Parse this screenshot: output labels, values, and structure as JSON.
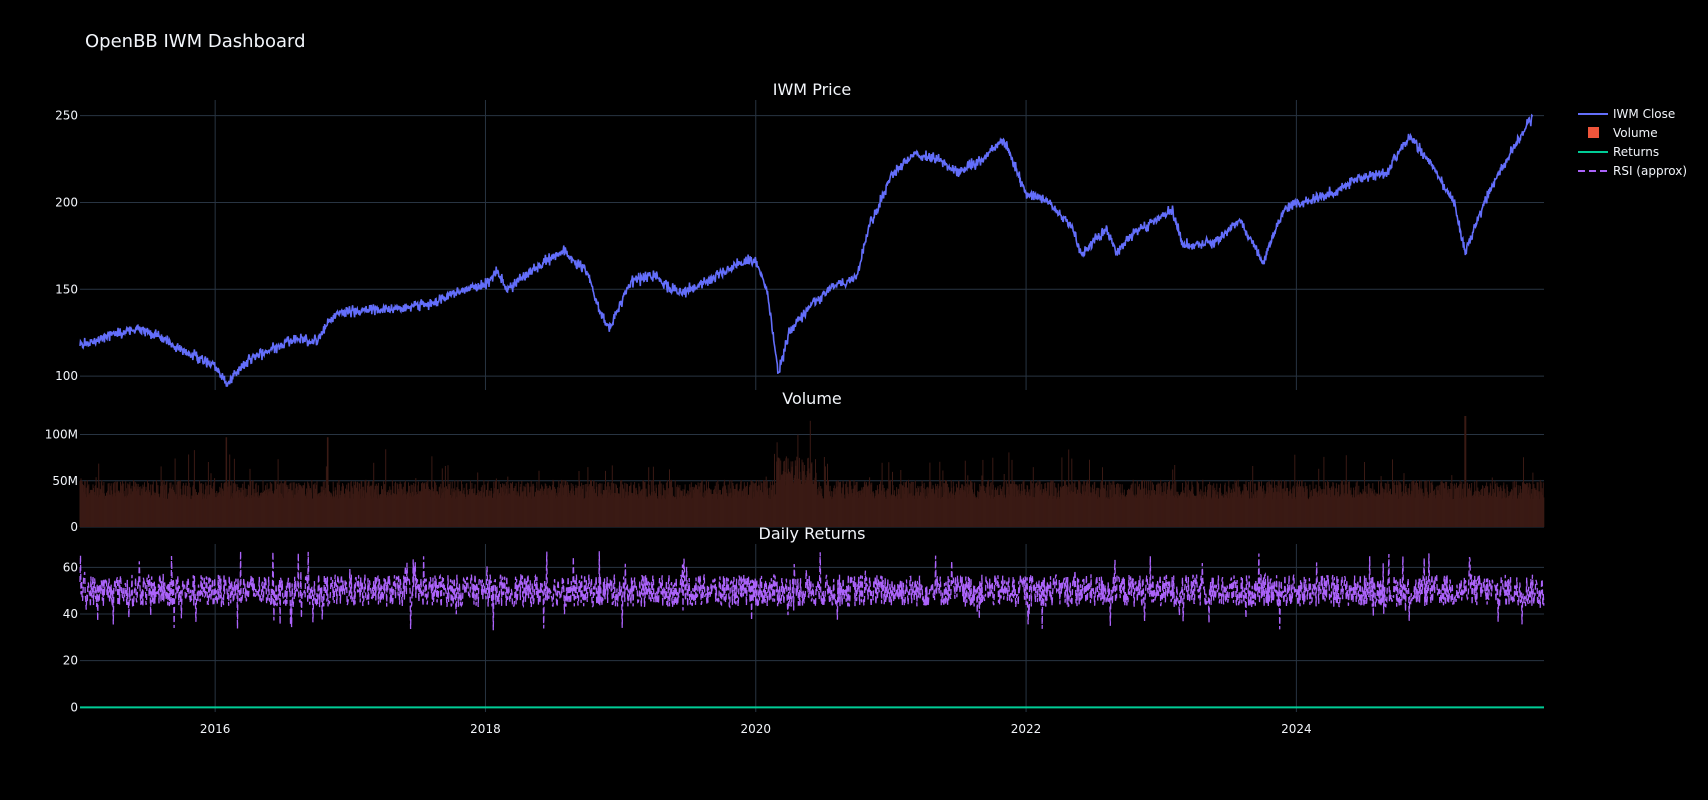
{
  "title": "OpenBB IWM Dashboard",
  "colors": {
    "background": "#000000",
    "grid": "#283442",
    "text": "#f2f5fa",
    "close": "#636efa",
    "volume": "#ef553b",
    "returns": "#00cc96",
    "rsi": "#ab63fa"
  },
  "legend": [
    {
      "label": "IWM Close",
      "symbol": "line",
      "color": "#636efa"
    },
    {
      "label": "Volume",
      "symbol": "square",
      "color": "#ef553b"
    },
    {
      "label": "Returns",
      "symbol": "line",
      "color": "#00cc96"
    },
    {
      "label": "RSI (approx)",
      "symbol": "dash",
      "color": "#ab63fa"
    }
  ],
  "x_ticks": [
    "2016",
    "2018",
    "2020",
    "2022",
    "2024"
  ],
  "chart_data": [
    {
      "type": "line",
      "title": "IWM Price",
      "series": [
        {
          "name": "IWM Close"
        }
      ],
      "xlim": [
        "2015-01-01",
        "2025-10-31"
      ],
      "ylim": [
        92,
        259
      ],
      "yticks": [
        100,
        150,
        200,
        250
      ],
      "x": [
        "2015-01",
        "2015-04",
        "2015-06",
        "2015-08",
        "2015-10",
        "2016-01",
        "2016-02",
        "2016-04",
        "2016-06",
        "2016-08",
        "2016-10",
        "2016-11",
        "2016-12",
        "2017-03",
        "2017-06",
        "2017-08",
        "2017-10",
        "2018-01",
        "2018-02",
        "2018-03",
        "2018-06",
        "2018-08",
        "2018-10",
        "2018-11",
        "2018-12",
        "2019-02",
        "2019-04",
        "2019-06",
        "2019-08",
        "2019-10",
        "2019-12",
        "2020-01",
        "2020-02",
        "2020-03",
        "2020-04",
        "2020-06",
        "2020-08",
        "2020-10",
        "2020-11",
        "2021-01",
        "2021-03",
        "2021-05",
        "2021-07",
        "2021-09",
        "2021-11",
        "2022-01",
        "2022-03",
        "2022-05",
        "2022-06",
        "2022-08",
        "2022-09",
        "2022-11",
        "2023-02",
        "2023-03",
        "2023-06",
        "2023-08",
        "2023-10",
        "2023-12",
        "2024-02",
        "2024-04",
        "2024-07",
        "2024-09",
        "2024-11",
        "2025-01",
        "2025-03",
        "2025-04",
        "2025-06",
        "2025-08",
        "2025-10"
      ],
      "y": [
        118,
        124,
        127,
        123,
        115,
        106,
        95,
        110,
        115,
        122,
        120,
        130,
        137,
        138,
        140,
        141,
        147,
        153,
        160,
        150,
        165,
        172,
        160,
        140,
        128,
        155,
        158,
        148,
        152,
        160,
        166,
        166,
        150,
        102,
        125,
        142,
        152,
        157,
        185,
        215,
        228,
        225,
        218,
        224,
        237,
        205,
        200,
        186,
        170,
        185,
        172,
        184,
        195,
        175,
        178,
        190,
        165,
        198,
        200,
        205,
        215,
        217,
        238,
        222,
        200,
        172,
        205,
        228,
        250
      ],
      "legend_placement": "top-right"
    },
    {
      "type": "bar",
      "title": "Volume",
      "series": [
        {
          "name": "Volume"
        }
      ],
      "ylim": [
        0,
        120000000
      ],
      "yticks": [
        0,
        50000000,
        100000000
      ],
      "ytick_labels": [
        "0",
        "50M",
        "100M"
      ],
      "daily_typical": [
        30000000,
        60000000
      ],
      "notable_peaks": [
        {
          "x": "2016-02",
          "value": 97000000
        },
        {
          "x": "2016-11",
          "value": 97000000
        },
        {
          "x": "2020-03",
          "value": 75000000
        },
        {
          "x": "2025-04",
          "value": 120000000
        }
      ]
    },
    {
      "type": "line",
      "title": "Daily Returns",
      "series": [
        {
          "name": "Returns",
          "value": 0
        },
        {
          "name": "RSI (approx)",
          "range": [
            27,
            67
          ],
          "center": 50
        }
      ],
      "ylim": [
        -2,
        70
      ],
      "yticks": [
        0,
        20,
        40,
        60
      ]
    }
  ]
}
